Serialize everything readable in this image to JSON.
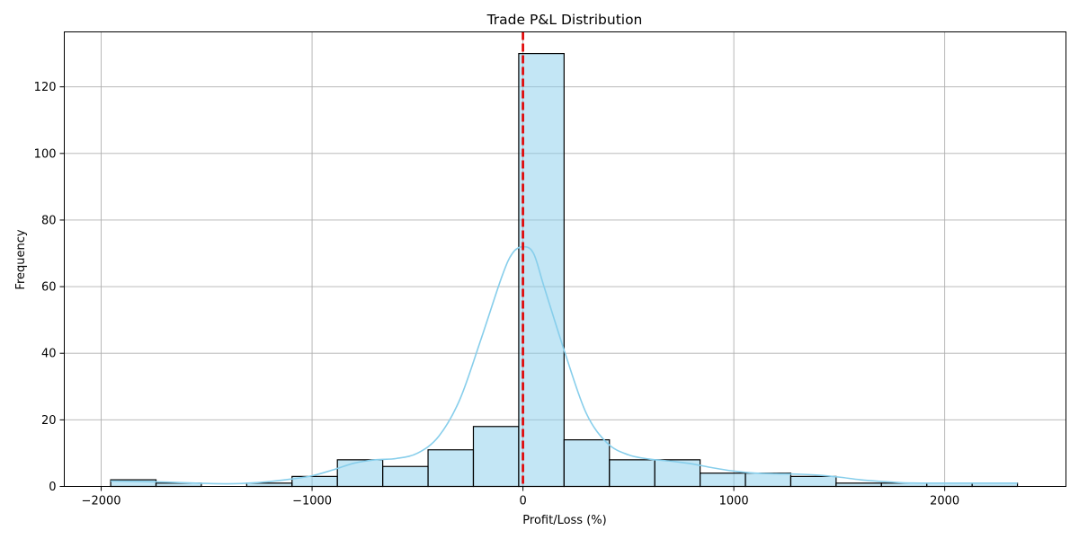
{
  "chart_data": {
    "type": "bar",
    "title": "Trade P&L Distribution",
    "xlabel": "Profit/Loss (%)",
    "ylabel": "Frequency",
    "xlim": [
      -2175,
      2575
    ],
    "ylim": [
      0,
      136.5
    ],
    "xticks": [
      -2000,
      -1000,
      0,
      1000,
      2000
    ],
    "xtick_labels": [
      "−2000",
      "−1000",
      "0",
      "1000",
      "2000"
    ],
    "yticks": [
      0,
      20,
      40,
      60,
      80,
      100,
      120
    ],
    "yticks_labels": [
      "0",
      "20",
      "40",
      "60",
      "80",
      "100",
      "120"
    ],
    "grid": true,
    "bins": [
      {
        "start": -1955,
        "end": -1740,
        "count": 2
      },
      {
        "start": -1740,
        "end": -1525,
        "count": 1
      },
      {
        "start": -1525,
        "end": -1310,
        "count": 0
      },
      {
        "start": -1310,
        "end": -1095,
        "count": 1
      },
      {
        "start": -1095,
        "end": -880,
        "count": 3
      },
      {
        "start": -880,
        "end": -665,
        "count": 8
      },
      {
        "start": -665,
        "end": -450,
        "count": 6
      },
      {
        "start": -450,
        "end": -235,
        "count": 11
      },
      {
        "start": -235,
        "end": -20,
        "count": 18
      },
      {
        "start": -20,
        "end": 195,
        "count": 130
      },
      {
        "start": 195,
        "end": 410,
        "count": 14
      },
      {
        "start": 410,
        "end": 625,
        "count": 8
      },
      {
        "start": 625,
        "end": 840,
        "count": 8
      },
      {
        "start": 840,
        "end": 1055,
        "count": 4
      },
      {
        "start": 1055,
        "end": 1270,
        "count": 4
      },
      {
        "start": 1270,
        "end": 1485,
        "count": 3
      },
      {
        "start": 1485,
        "end": 1700,
        "count": 1
      },
      {
        "start": 1700,
        "end": 1915,
        "count": 1
      },
      {
        "start": 1915,
        "end": 2130,
        "count": 1
      },
      {
        "start": 2130,
        "end": 2345,
        "count": 1
      }
    ],
    "kde": {
      "x": [
        -1955,
        -1750,
        -1550,
        -1400,
        -1250,
        -1100,
        -1000,
        -900,
        -800,
        -700,
        -600,
        -500,
        -400,
        -300,
        -200,
        -100,
        -50,
        0,
        50,
        100,
        200,
        300,
        400,
        500,
        600,
        700,
        800,
        900,
        1000,
        1100,
        1200,
        1300,
        1400,
        1500,
        1600,
        1700,
        1800,
        1900,
        2000,
        2150,
        2345
      ],
      "y": [
        1.6,
        1.4,
        1.0,
        0.8,
        1.2,
        2.2,
        3.2,
        5.0,
        7.0,
        8.0,
        8.4,
        10.0,
        15.0,
        26.0,
        44.0,
        63.0,
        70.0,
        72.0,
        70.0,
        60.0,
        40.0,
        22.0,
        13.0,
        9.5,
        8.2,
        7.6,
        6.8,
        5.6,
        4.6,
        4.0,
        3.8,
        3.7,
        3.4,
        2.8,
        2.0,
        1.5,
        1.1,
        1.0,
        1.0,
        1.0,
        1.0
      ]
    },
    "reference_line": {
      "x": 0,
      "style": "dashed",
      "color": "#e00000"
    },
    "colors": {
      "bar": "#87ceeb",
      "kde": "#87ceeb",
      "edge": "#000000",
      "grid": "#b0b0b0"
    }
  }
}
